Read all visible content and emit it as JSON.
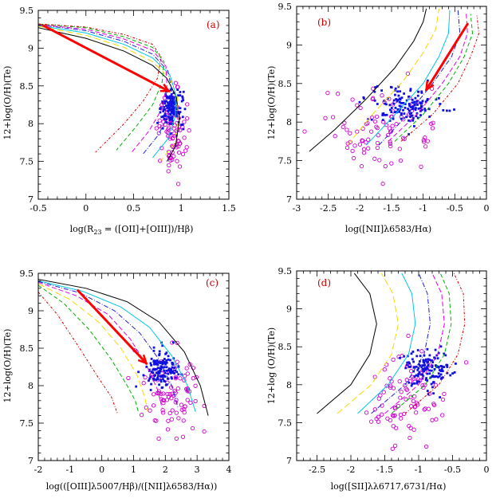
{
  "colors": {
    "axis": "#000000",
    "tag": "#cc0000",
    "arrow": "#ff0000",
    "blue_points": "#1010e0",
    "magenta_points": "#d000d0",
    "model_curves": [
      "#000000",
      "#ffd700",
      "#00c8e6",
      "#2020d0",
      "#e000e0",
      "#00b000",
      "#d00000"
    ]
  },
  "chart_data": [
    {
      "type": "scatter",
      "panel": "(a)",
      "xlabel": "log(R",
      "xlabel_sub": "23",
      "xlabel_rest": " = ([OII]+[OIII])/Hβ)",
      "ylabel": "12+log(O/H)(Te)",
      "xlim": [
        -0.5,
        1.5
      ],
      "ylim": [
        7.0,
        9.5
      ],
      "xticks": [
        "-0.5",
        "0",
        "0.5",
        "1",
        "1.5"
      ],
      "yticks": [
        "7",
        "7.5",
        "8",
        "8.5",
        "9",
        "9.5"
      ],
      "model_curves": [
        {
          "color": "black",
          "points": [
            [
              -0.5,
              9.27
            ],
            [
              0.0,
              9.13
            ],
            [
              0.4,
              8.96
            ],
            [
              0.7,
              8.77
            ],
            [
              0.85,
              8.6
            ],
            [
              0.95,
              8.35
            ],
            [
              0.98,
              8.05
            ],
            [
              0.94,
              7.7
            ],
            [
              0.85,
              7.5
            ]
          ]
        },
        {
          "color": "yellow",
          "points": [
            [
              -0.5,
              9.29
            ],
            [
              0.0,
              9.17
            ],
            [
              0.4,
              9.01
            ],
            [
              0.7,
              8.82
            ],
            [
              0.88,
              8.6
            ],
            [
              0.96,
              8.35
            ],
            [
              0.97,
              8.05
            ],
            [
              0.92,
              7.72
            ],
            [
              0.78,
              7.5
            ]
          ]
        },
        {
          "color": "cyan",
          "points": [
            [
              -0.5,
              9.3
            ],
            [
              0.0,
              9.2
            ],
            [
              0.4,
              9.05
            ],
            [
              0.7,
              8.87
            ],
            [
              0.88,
              8.65
            ],
            [
              0.94,
              8.4
            ],
            [
              0.94,
              8.1
            ],
            [
              0.86,
              7.8
            ],
            [
              0.7,
              7.55
            ]
          ]
        },
        {
          "color": "blue",
          "points": [
            [
              -0.5,
              9.31
            ],
            [
              0.0,
              9.23
            ],
            [
              0.4,
              9.09
            ],
            [
              0.7,
              8.92
            ],
            [
              0.86,
              8.7
            ],
            [
              0.9,
              8.45
            ],
            [
              0.88,
              8.15
            ],
            [
              0.76,
              7.85
            ],
            [
              0.6,
              7.6
            ]
          ]
        },
        {
          "color": "magenta",
          "points": [
            [
              -0.5,
              9.31
            ],
            [
              0.0,
              9.25
            ],
            [
              0.4,
              9.12
            ],
            [
              0.7,
              8.97
            ],
            [
              0.84,
              8.76
            ],
            [
              0.85,
              8.5
            ],
            [
              0.8,
              8.2
            ],
            [
              0.66,
              7.9
            ],
            [
              0.48,
              7.62
            ]
          ]
        },
        {
          "color": "green",
          "points": [
            [
              -0.5,
              9.32
            ],
            [
              0.0,
              9.27
            ],
            [
              0.4,
              9.15
            ],
            [
              0.7,
              9.01
            ],
            [
              0.82,
              8.82
            ],
            [
              0.8,
              8.55
            ],
            [
              0.7,
              8.25
            ],
            [
              0.52,
              7.95
            ],
            [
              0.32,
              7.65
            ]
          ]
        },
        {
          "color": "red",
          "points": [
            [
              -0.5,
              9.32
            ],
            [
              0.0,
              9.28
            ],
            [
              0.4,
              9.18
            ],
            [
              0.7,
              9.05
            ],
            [
              0.79,
              8.88
            ],
            [
              0.75,
              8.6
            ],
            [
              0.6,
              8.3
            ],
            [
              0.4,
              8.0
            ],
            [
              0.1,
              7.62
            ]
          ]
        }
      ],
      "arrow": {
        "from": [
          -0.45,
          9.3
        ],
        "to": [
          0.87,
          8.43
        ]
      },
      "blue_cluster": {
        "center": [
          0.9,
          8.2
        ],
        "spread": [
          0.06,
          0.14
        ],
        "count": 140
      },
      "magenta_cluster": {
        "center": [
          0.9,
          7.9
        ],
        "spread": [
          0.07,
          0.28
        ],
        "count": 90
      }
    },
    {
      "type": "scatter",
      "panel": "(b)",
      "xlabel": "log([NII]λ6583/Hα)",
      "ylabel": "12+log(O/H)(Te)",
      "xlim": [
        -3.0,
        0.0
      ],
      "ylim": [
        7.0,
        9.5
      ],
      "xticks": [
        "-3",
        "-2.5",
        "-2",
        "-1.5",
        "-1",
        "-0.5",
        "0"
      ],
      "yticks": [
        "7",
        "7.5",
        "8",
        "8.5",
        "9",
        "9.5"
      ],
      "model_curves": [
        {
          "color": "black",
          "points": [
            [
              -2.8,
              7.62
            ],
            [
              -2.4,
              7.9
            ],
            [
              -1.9,
              8.3
            ],
            [
              -1.45,
              8.7
            ],
            [
              -1.15,
              9.05
            ],
            [
              -1.0,
              9.3
            ],
            [
              -0.95,
              9.47
            ]
          ]
        },
        {
          "color": "yellow",
          "points": [
            [
              -2.2,
              7.7
            ],
            [
              -1.8,
              8.1
            ],
            [
              -1.3,
              8.55
            ],
            [
              -1.0,
              8.9
            ],
            [
              -0.8,
              9.2
            ],
            [
              -0.75,
              9.47
            ]
          ]
        },
        {
          "color": "cyan",
          "points": [
            [
              -1.9,
              7.7
            ],
            [
              -1.5,
              8.05
            ],
            [
              -1.0,
              8.5
            ],
            [
              -0.75,
              8.85
            ],
            [
              -0.6,
              9.15
            ],
            [
              -0.58,
              9.45
            ]
          ]
        },
        {
          "color": "blue",
          "points": [
            [
              -1.7,
              7.7
            ],
            [
              -1.3,
              8.05
            ],
            [
              -0.85,
              8.5
            ],
            [
              -0.55,
              8.85
            ],
            [
              -0.42,
              9.15
            ],
            [
              -0.45,
              9.45
            ]
          ]
        },
        {
          "color": "magenta",
          "points": [
            [
              -1.55,
              7.75
            ],
            [
              -1.1,
              8.1
            ],
            [
              -0.7,
              8.5
            ],
            [
              -0.42,
              8.85
            ],
            [
              -0.3,
              9.15
            ],
            [
              -0.32,
              9.42
            ]
          ]
        },
        {
          "color": "green",
          "points": [
            [
              -1.45,
              7.75
            ],
            [
              -1.0,
              8.1
            ],
            [
              -0.6,
              8.5
            ],
            [
              -0.35,
              8.85
            ],
            [
              -0.22,
              9.15
            ],
            [
              -0.25,
              9.4
            ]
          ]
        },
        {
          "color": "red",
          "points": [
            [
              -1.35,
              7.75
            ],
            [
              -0.85,
              8.1
            ],
            [
              -0.45,
              8.5
            ],
            [
              -0.25,
              8.85
            ],
            [
              -0.12,
              9.15
            ],
            [
              -0.15,
              9.38
            ]
          ]
        }
      ],
      "arrow": {
        "from": [
          -0.3,
          9.27
        ],
        "to": [
          -0.95,
          8.42
        ]
      },
      "blue_cluster": {
        "center": [
          -1.25,
          8.22
        ],
        "spread": [
          0.25,
          0.12
        ],
        "count": 140
      },
      "magenta_cluster": {
        "center": [
          -1.7,
          7.9
        ],
        "spread": [
          0.4,
          0.28
        ],
        "count": 90
      }
    },
    {
      "type": "scatter",
      "panel": "(c)",
      "xlabel": "log(([OIII]λ5007/Hβ)/([NII]λ6583/Hα))",
      "ylabel": "12+log(O/H)(Te)",
      "xlim": [
        -2.0,
        4.0
      ],
      "ylim": [
        7.0,
        9.5
      ],
      "xticks": [
        "-2",
        "-1",
        "0",
        "1",
        "2",
        "3",
        "4"
      ],
      "yticks": [
        "7",
        "7.5",
        "8",
        "8.5",
        "9",
        "9.5"
      ],
      "model_curves": [
        {
          "color": "black",
          "points": [
            [
              -2.0,
              9.42
            ],
            [
              -0.5,
              9.3
            ],
            [
              0.8,
              9.12
            ],
            [
              1.8,
              8.85
            ],
            [
              2.6,
              8.45
            ],
            [
              3.1,
              8.0
            ],
            [
              3.35,
              7.6
            ]
          ]
        },
        {
          "color": "cyan",
          "points": [
            [
              -2.0,
              9.4
            ],
            [
              -0.6,
              9.26
            ],
            [
              0.6,
              9.05
            ],
            [
              1.5,
              8.78
            ],
            [
              2.2,
              8.4
            ],
            [
              2.7,
              8.0
            ],
            [
              2.95,
              7.65
            ]
          ]
        },
        {
          "color": "blue",
          "points": [
            [
              -2.0,
              9.39
            ],
            [
              -0.7,
              9.24
            ],
            [
              0.4,
              9.0
            ],
            [
              1.2,
              8.7
            ],
            [
              1.8,
              8.35
            ],
            [
              2.2,
              8.0
            ],
            [
              2.4,
              7.7
            ]
          ]
        },
        {
          "color": "magenta",
          "points": [
            [
              -2.0,
              9.38
            ],
            [
              -0.8,
              9.2
            ],
            [
              0.2,
              8.95
            ],
            [
              0.9,
              8.62
            ],
            [
              1.4,
              8.28
            ],
            [
              1.75,
              7.95
            ],
            [
              1.9,
              7.7
            ]
          ]
        },
        {
          "color": "yellow",
          "points": [
            [
              -2.0,
              9.36
            ],
            [
              -1.0,
              9.15
            ],
            [
              -0.1,
              8.85
            ],
            [
              0.6,
              8.5
            ],
            [
              1.1,
              8.15
            ],
            [
              1.35,
              7.85
            ],
            [
              1.45,
              7.65
            ]
          ]
        },
        {
          "color": "green",
          "points": [
            [
              -2.0,
              9.34
            ],
            [
              -1.2,
              9.1
            ],
            [
              -0.4,
              8.75
            ],
            [
              0.3,
              8.35
            ],
            [
              0.8,
              8.0
            ],
            [
              1.05,
              7.8
            ],
            [
              1.15,
              7.65
            ]
          ]
        },
        {
          "color": "red",
          "points": [
            [
              -2.0,
              9.25
            ],
            [
              -1.4,
              8.95
            ],
            [
              -0.7,
              8.5
            ],
            [
              -0.1,
              8.1
            ],
            [
              0.3,
              7.85
            ],
            [
              0.5,
              7.62
            ]
          ]
        }
      ],
      "arrow": {
        "from": [
          -0.75,
          9.27
        ],
        "to": [
          1.4,
          8.3
        ]
      },
      "blue_cluster": {
        "center": [
          1.9,
          8.22
        ],
        "spread": [
          0.28,
          0.12
        ],
        "count": 140
      },
      "magenta_cluster": {
        "center": [
          2.2,
          7.9
        ],
        "spread": [
          0.45,
          0.28
        ],
        "count": 90
      }
    },
    {
      "type": "scatter",
      "panel": "(d)",
      "xlabel": "log([SII]λλ6717,6731/Hα)",
      "ylabel": "12+log (O/H)(Te)",
      "xlim": [
        -2.8,
        0.0
      ],
      "ylim": [
        7.0,
        9.5
      ],
      "xticks": [
        "-2.5",
        "-2",
        "-1.5",
        "-1",
        "-0.5",
        "0"
      ],
      "yticks": [
        "7",
        "7.5",
        "8",
        "8.5",
        "9",
        "9.5"
      ],
      "model_curves": [
        {
          "color": "black",
          "points": [
            [
              -2.5,
              7.62
            ],
            [
              -2.0,
              8.0
            ],
            [
              -1.72,
              8.4
            ],
            [
              -1.62,
              8.8
            ],
            [
              -1.72,
              9.2
            ],
            [
              -1.95,
              9.47
            ]
          ]
        },
        {
          "color": "yellow",
          "points": [
            [
              -2.2,
              7.62
            ],
            [
              -1.7,
              8.0
            ],
            [
              -1.4,
              8.4
            ],
            [
              -1.3,
              8.8
            ],
            [
              -1.38,
              9.2
            ],
            [
              -1.55,
              9.47
            ]
          ]
        },
        {
          "color": "cyan",
          "points": [
            [
              -1.9,
              7.62
            ],
            [
              -1.45,
              8.0
            ],
            [
              -1.15,
              8.4
            ],
            [
              -1.05,
              8.8
            ],
            [
              -1.1,
              9.2
            ],
            [
              -1.25,
              9.47
            ]
          ]
        },
        {
          "color": "blue",
          "points": [
            [
              -1.7,
              7.62
            ],
            [
              -1.2,
              8.0
            ],
            [
              -0.92,
              8.4
            ],
            [
              -0.83,
              8.8
            ],
            [
              -0.87,
              9.2
            ],
            [
              -1.0,
              9.47
            ]
          ]
        },
        {
          "color": "magenta",
          "points": [
            [
              -1.5,
              7.62
            ],
            [
              -1.0,
              8.0
            ],
            [
              -0.72,
              8.4
            ],
            [
              -0.62,
              8.8
            ],
            [
              -0.66,
              9.2
            ],
            [
              -0.8,
              9.47
            ]
          ]
        },
        {
          "color": "green",
          "points": [
            [
              -1.4,
              7.62
            ],
            [
              -0.9,
              8.0
            ],
            [
              -0.62,
              8.4
            ],
            [
              -0.52,
              8.8
            ],
            [
              -0.55,
              9.2
            ],
            [
              -0.68,
              9.47
            ]
          ]
        },
        {
          "color": "red",
          "points": [
            [
              -1.2,
              7.62
            ],
            [
              -0.7,
              8.0
            ],
            [
              -0.42,
              8.4
            ],
            [
              -0.32,
              8.8
            ],
            [
              -0.34,
              9.2
            ],
            [
              -0.48,
              9.47
            ]
          ]
        }
      ],
      "blue_cluster": {
        "center": [
          -0.9,
          8.2
        ],
        "spread": [
          0.18,
          0.13
        ],
        "count": 140
      },
      "magenta_cluster": {
        "center": [
          -1.2,
          7.85
        ],
        "spread": [
          0.3,
          0.28
        ],
        "count": 90
      }
    }
  ]
}
